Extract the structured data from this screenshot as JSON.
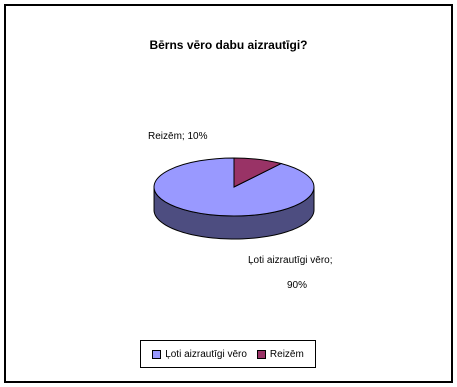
{
  "chart_data": {
    "type": "pie",
    "title": "Bērns vēro dabu aizrautīgi?",
    "slices": [
      {
        "name": "Ļoti aizrautīgi vēro",
        "value": 90,
        "color": "#9999ff",
        "side_color": "#4d4d80"
      },
      {
        "name": "Reizēm",
        "value": 10,
        "color": "#993366",
        "side_color": "#4d1a33"
      }
    ],
    "data_labels": {
      "slice0_line1": "Ļoti aizrautīgi vēro;",
      "slice0_line2": "90%",
      "slice1": "Reizēm; 10%"
    },
    "legend_placement": "bottom",
    "three_d": true
  },
  "legend": {
    "items": [
      {
        "label": "Ļoti aizrautīgi vēro",
        "color": "#9999ff"
      },
      {
        "label": "Reizēm",
        "color": "#993366"
      }
    ]
  }
}
